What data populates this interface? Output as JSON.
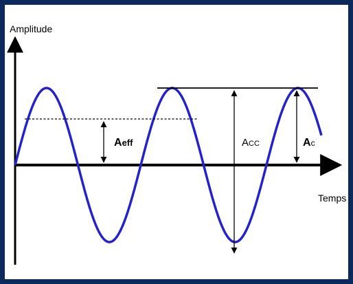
{
  "axes": {
    "y_label": "Amplitude",
    "x_label": "Temps"
  },
  "annotations": {
    "a_eff": {
      "main": "A",
      "sub": "eff"
    },
    "a_cc": {
      "main": "A",
      "sub": "CC"
    },
    "a_c": {
      "main": "A",
      "sub": "c"
    }
  },
  "colors": {
    "frame": "#0b2a5b",
    "wave": "#2323c8",
    "lines": "#000000"
  }
}
